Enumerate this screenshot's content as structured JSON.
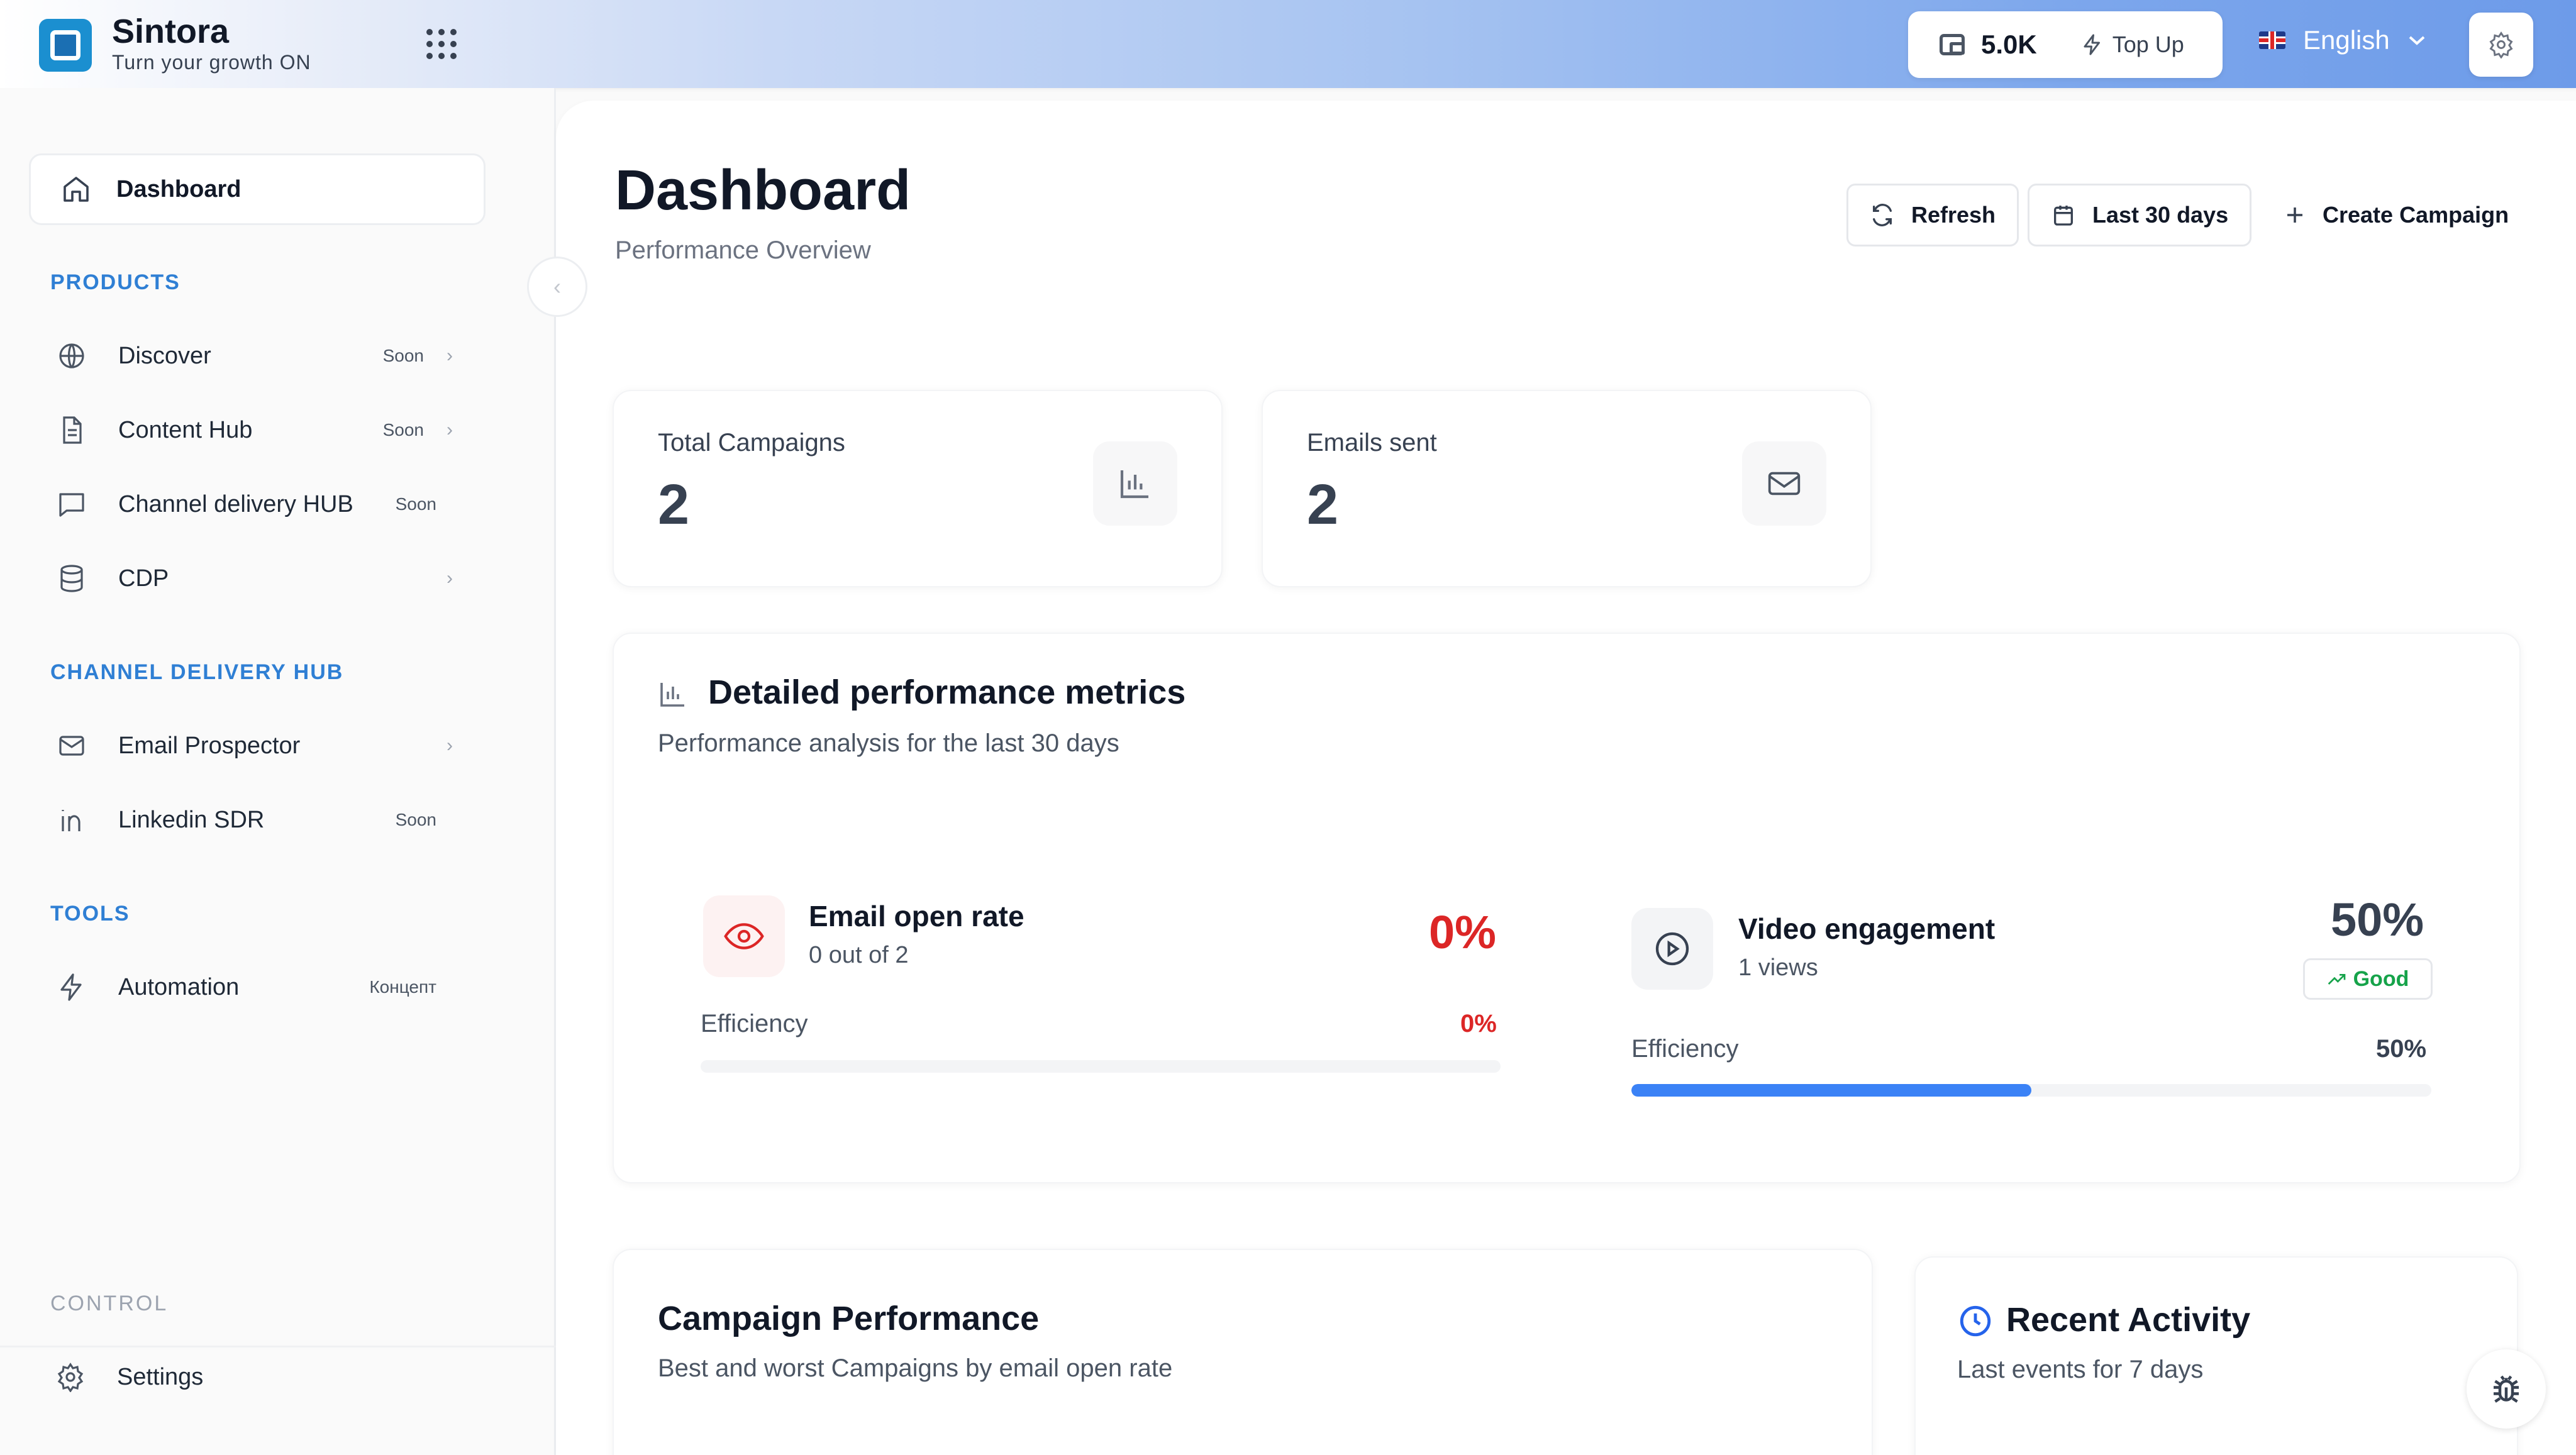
{
  "header": {
    "brand_name": "Sintora",
    "brand_tagline": "Turn your growth  ON",
    "credits": "5.0K",
    "top_up_label": "Top Up",
    "language": "English"
  },
  "sidebar": {
    "dashboard_label": "Dashboard",
    "sections": {
      "products": "PRODUCTS",
      "channel": "CHANNEL DELIVERY HUB",
      "tools": "TOOLS",
      "control": "CONTROL"
    },
    "items": [
      {
        "label": "Discover",
        "badge": "Soon",
        "icon": "globe-icon"
      },
      {
        "label": "Content Hub",
        "badge": "Soon",
        "icon": "document-icon"
      },
      {
        "label": "Channel delivery HUB",
        "badge": "Soon",
        "icon": "chat-icon"
      },
      {
        "label": "CDP",
        "badge": "",
        "icon": "database-icon"
      },
      {
        "label": "Email Prospector",
        "badge": "",
        "icon": "mail-icon"
      },
      {
        "label": "Linkedin SDR",
        "badge": "Soon",
        "icon": "linkedin-icon"
      },
      {
        "label": "Automation",
        "badge": "Концепт",
        "icon": "lightning-icon"
      },
      {
        "label": "Settings",
        "badge": "",
        "icon": "gear-icon"
      }
    ]
  },
  "main": {
    "title": "Dashboard",
    "subtitle": "Performance Overview",
    "actions": {
      "refresh": "Refresh",
      "range": "Last 30 days",
      "create": "Create Campaign"
    },
    "stats": [
      {
        "title": "Total Campaigns",
        "value": "2",
        "icon": "bar-chart-icon"
      },
      {
        "title": "Emails sent",
        "value": "2",
        "icon": "mail-icon"
      }
    ],
    "metrics": {
      "title": "Detailed performance metrics",
      "subtitle": "Performance analysis for the last 30 days",
      "email_open": {
        "label": "Email open rate",
        "sub": "0 out of 2",
        "value": "0%",
        "eff_label": "Efficiency",
        "eff_value": "0%",
        "fill": 0
      },
      "video": {
        "label": "Video engagement",
        "sub": "1 views",
        "value": "50%",
        "badge": "Good",
        "eff_label": "Efficiency",
        "eff_value": "50%",
        "fill": 0.5
      }
    },
    "campaign_perf": {
      "title": "Campaign Performance",
      "subtitle": "Best and worst Campaigns by email open rate"
    },
    "recent_activity": {
      "title": "Recent Activity",
      "subtitle": "Last events for 7 days"
    }
  },
  "colors": {
    "accent": "#2f7fd4",
    "danger": "#dc2626",
    "success": "#16a34a",
    "progress": "#3b82f6"
  }
}
